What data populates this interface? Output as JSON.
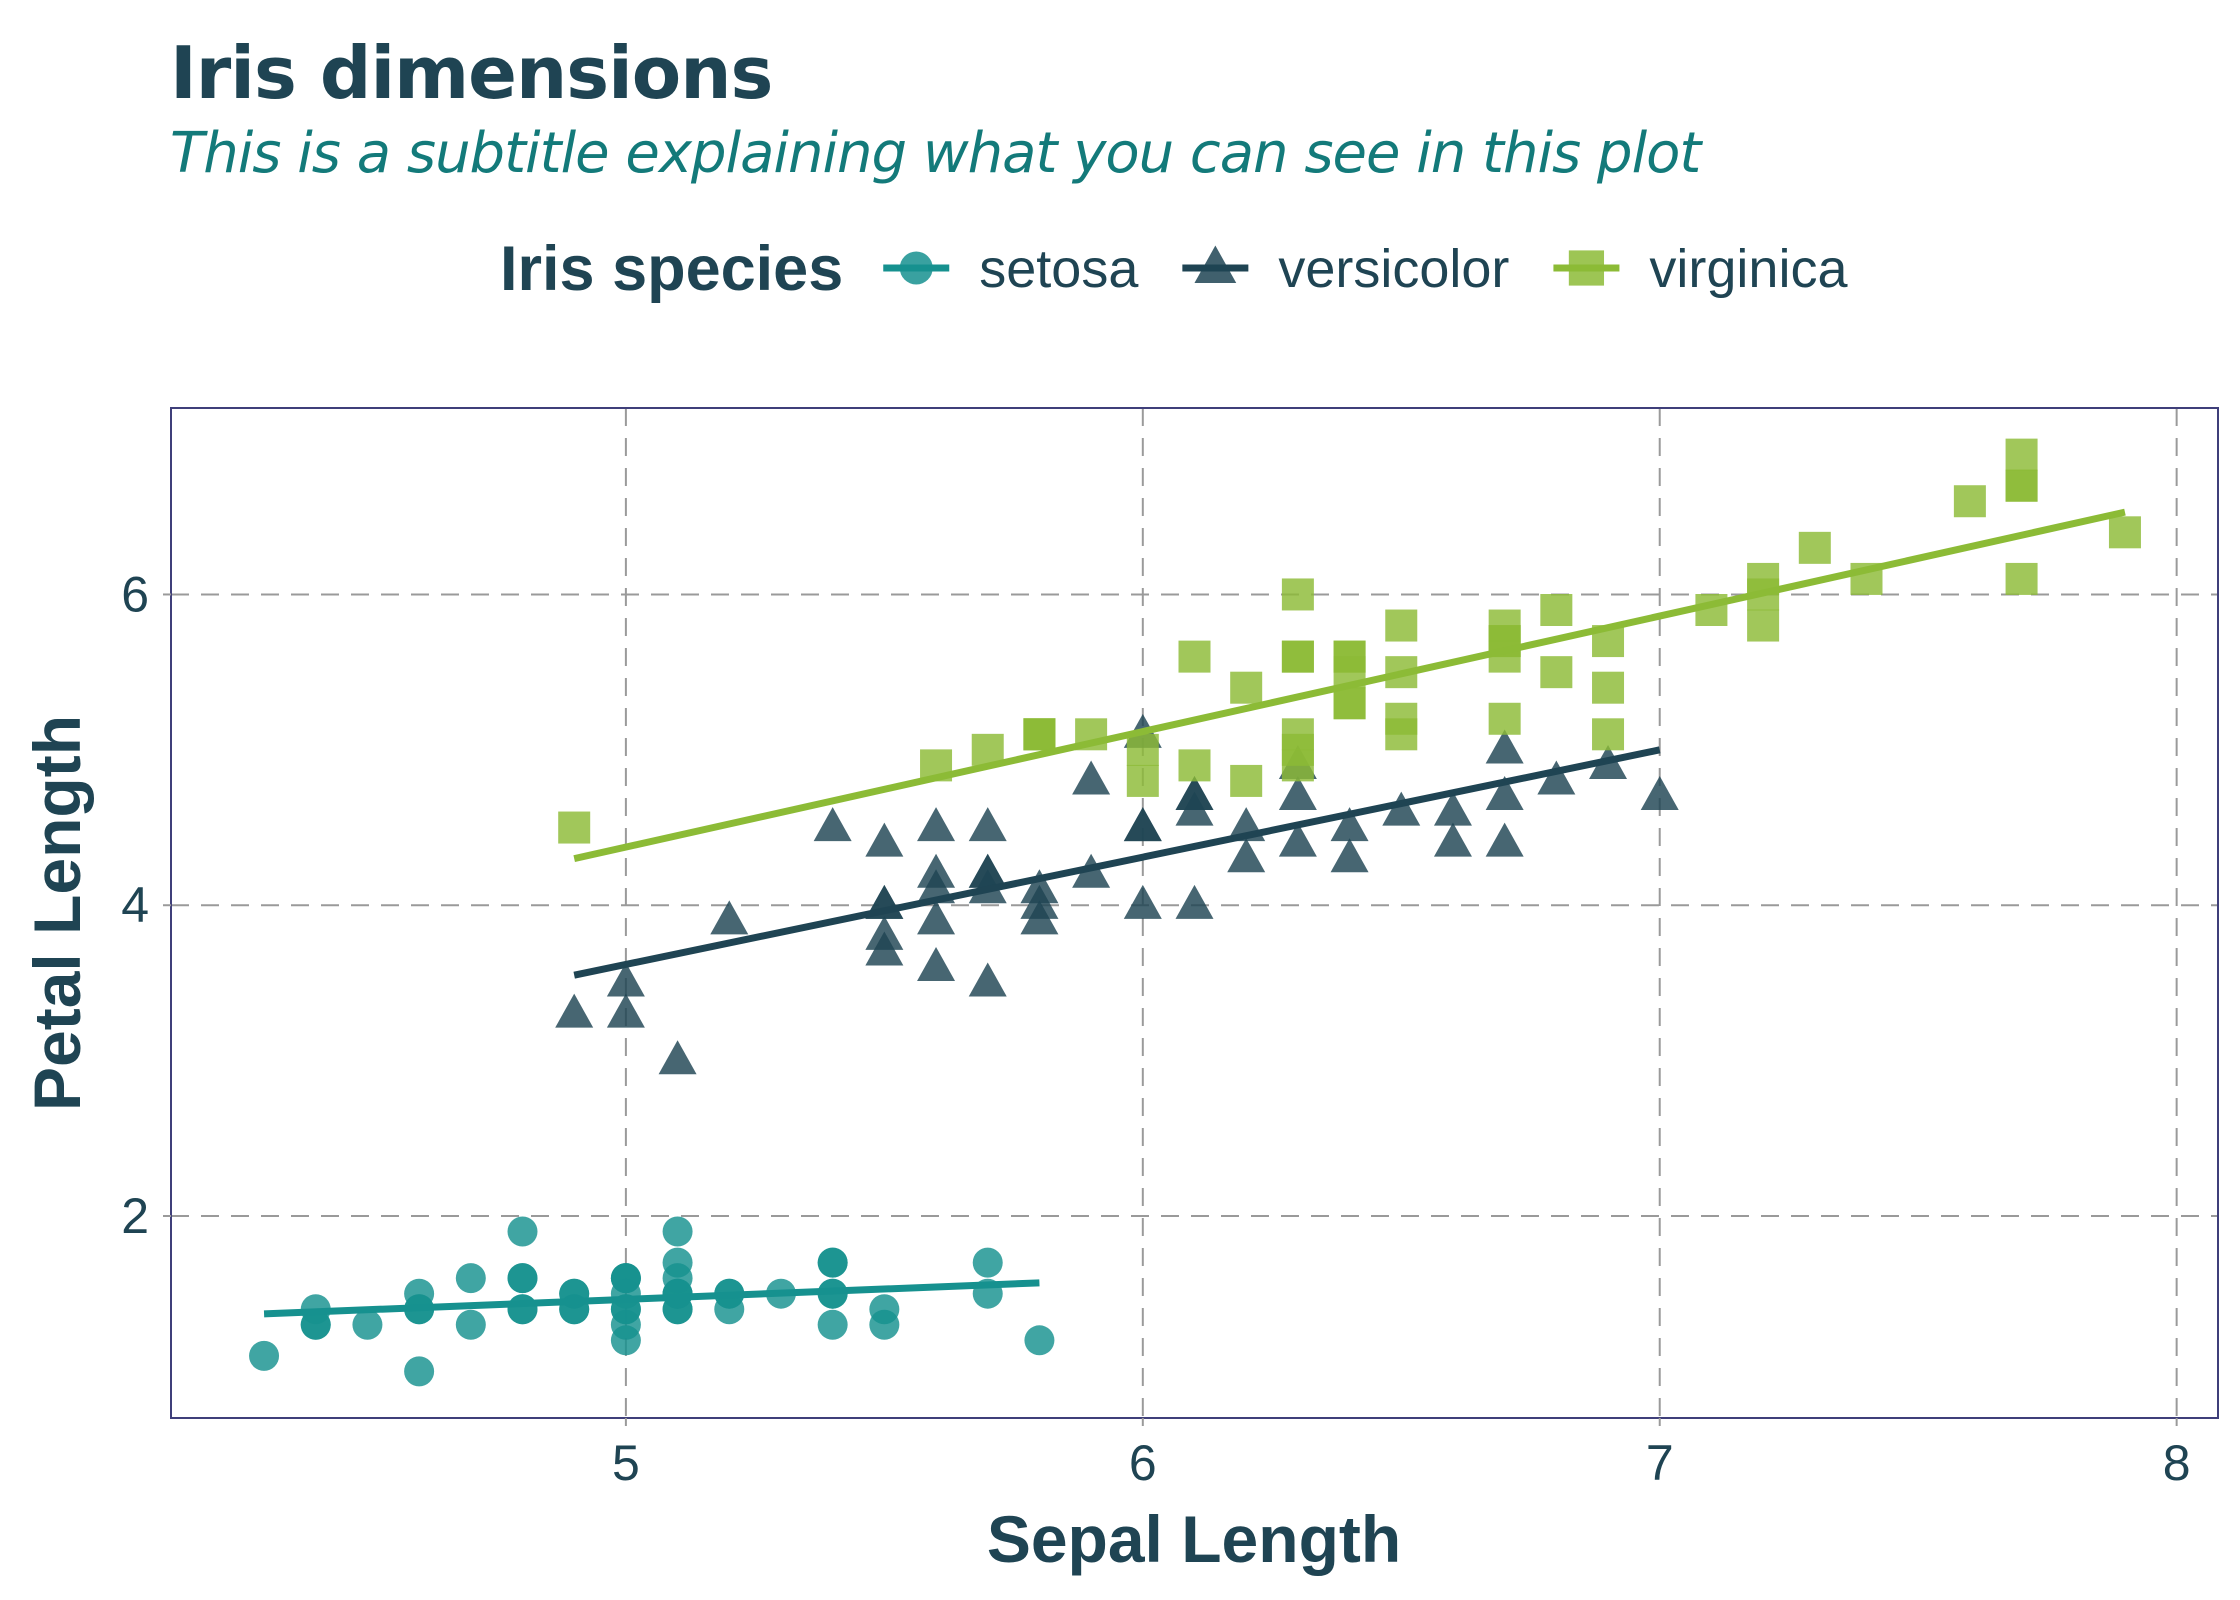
{
  "chart_data": {
    "type": "scatter",
    "title": "Iris dimensions",
    "subtitle": "This is a subtitle explaining what you can see in this plot",
    "xlabel": "Sepal Length",
    "ylabel": "Petal Length",
    "xlim": [
      4.12,
      8.08
    ],
    "ylim": [
      0.7,
      7.2
    ],
    "x_ticks": [
      5,
      6,
      7,
      8
    ],
    "y_ticks": [
      2,
      4,
      6
    ],
    "grid": true,
    "legend": {
      "title": "Iris species",
      "placement": "top"
    },
    "colors": {
      "text": "#1f4453",
      "subtitle": "#137a7a",
      "grid": "#9a9a9a",
      "panel_border": "#3f3f7a"
    },
    "series": [
      {
        "name": "setosa",
        "marker": "circle",
        "color": "#16918f",
        "trend": {
          "x": [
            4.3,
            5.8
          ],
          "y": [
            1.37,
            1.57
          ]
        },
        "points": [
          [
            5.1,
            1.4
          ],
          [
            4.9,
            1.4
          ],
          [
            4.7,
            1.3
          ],
          [
            4.6,
            1.5
          ],
          [
            5.0,
            1.4
          ],
          [
            5.4,
            1.7
          ],
          [
            4.6,
            1.4
          ],
          [
            5.0,
            1.5
          ],
          [
            4.4,
            1.4
          ],
          [
            4.9,
            1.5
          ],
          [
            5.4,
            1.5
          ],
          [
            4.8,
            1.6
          ],
          [
            4.8,
            1.4
          ],
          [
            4.3,
            1.1
          ],
          [
            5.8,
            1.2
          ],
          [
            5.7,
            1.5
          ],
          [
            5.4,
            1.3
          ],
          [
            5.1,
            1.4
          ],
          [
            5.7,
            1.7
          ],
          [
            5.1,
            1.5
          ],
          [
            5.4,
            1.7
          ],
          [
            5.1,
            1.5
          ],
          [
            4.6,
            1.0
          ],
          [
            5.1,
            1.7
          ],
          [
            4.8,
            1.9
          ],
          [
            5.0,
            1.6
          ],
          [
            5.0,
            1.6
          ],
          [
            5.2,
            1.5
          ],
          [
            5.2,
            1.4
          ],
          [
            4.7,
            1.6
          ],
          [
            4.8,
            1.6
          ],
          [
            5.4,
            1.5
          ],
          [
            5.2,
            1.5
          ],
          [
            5.5,
            1.4
          ],
          [
            4.9,
            1.5
          ],
          [
            5.0,
            1.2
          ],
          [
            5.5,
            1.3
          ],
          [
            4.9,
            1.4
          ],
          [
            4.4,
            1.3
          ],
          [
            5.1,
            1.5
          ],
          [
            5.0,
            1.3
          ],
          [
            4.5,
            1.3
          ],
          [
            4.4,
            1.3
          ],
          [
            5.0,
            1.6
          ],
          [
            5.1,
            1.9
          ],
          [
            4.8,
            1.4
          ],
          [
            5.1,
            1.6
          ],
          [
            4.6,
            1.4
          ],
          [
            5.3,
            1.5
          ],
          [
            5.0,
            1.4
          ]
        ]
      },
      {
        "name": "versicolor",
        "marker": "triangle",
        "color": "#1f4453",
        "trend": {
          "x": [
            4.9,
            7.0
          ],
          "y": [
            3.55,
            5.0
          ]
        },
        "points": [
          [
            7.0,
            4.7
          ],
          [
            6.4,
            4.5
          ],
          [
            6.9,
            4.9
          ],
          [
            5.5,
            4.0
          ],
          [
            6.5,
            4.6
          ],
          [
            5.7,
            4.5
          ],
          [
            6.3,
            4.7
          ],
          [
            4.9,
            3.3
          ],
          [
            6.6,
            4.6
          ],
          [
            5.2,
            3.9
          ],
          [
            5.0,
            3.5
          ],
          [
            5.9,
            4.2
          ],
          [
            6.0,
            4.0
          ],
          [
            6.1,
            4.7
          ],
          [
            5.6,
            3.6
          ],
          [
            6.7,
            4.4
          ],
          [
            5.6,
            4.5
          ],
          [
            5.8,
            4.1
          ],
          [
            6.2,
            4.5
          ],
          [
            5.6,
            3.9
          ],
          [
            5.9,
            4.8
          ],
          [
            6.1,
            4.0
          ],
          [
            6.3,
            4.9
          ],
          [
            6.1,
            4.7
          ],
          [
            6.4,
            4.3
          ],
          [
            6.6,
            4.4
          ],
          [
            6.8,
            4.8
          ],
          [
            6.7,
            5.0
          ],
          [
            6.0,
            4.5
          ],
          [
            5.7,
            3.5
          ],
          [
            5.5,
            3.8
          ],
          [
            5.5,
            3.7
          ],
          [
            5.8,
            3.9
          ],
          [
            6.0,
            5.1
          ],
          [
            5.4,
            4.5
          ],
          [
            6.0,
            4.5
          ],
          [
            6.7,
            4.7
          ],
          [
            6.3,
            4.4
          ],
          [
            5.6,
            4.1
          ],
          [
            5.5,
            4.0
          ],
          [
            5.5,
            4.4
          ],
          [
            6.1,
            4.6
          ],
          [
            5.8,
            4.0
          ],
          [
            5.0,
            3.3
          ],
          [
            5.6,
            4.2
          ],
          [
            5.7,
            4.2
          ],
          [
            5.7,
            4.2
          ],
          [
            6.2,
            4.3
          ],
          [
            5.1,
            3.0
          ],
          [
            5.7,
            4.1
          ]
        ]
      },
      {
        "name": "virginica",
        "marker": "square",
        "color": "#8cbb36",
        "trend": {
          "x": [
            4.9,
            7.9
          ],
          "y": [
            4.3,
            6.53
          ]
        },
        "points": [
          [
            6.3,
            6.0
          ],
          [
            5.8,
            5.1
          ],
          [
            7.1,
            5.9
          ],
          [
            6.3,
            5.6
          ],
          [
            6.5,
            5.8
          ],
          [
            7.6,
            6.6
          ],
          [
            4.9,
            4.5
          ],
          [
            7.3,
            6.3
          ],
          [
            6.7,
            5.8
          ],
          [
            7.2,
            6.1
          ],
          [
            6.5,
            5.1
          ],
          [
            6.4,
            5.3
          ],
          [
            6.8,
            5.5
          ],
          [
            5.7,
            5.0
          ],
          [
            5.8,
            5.1
          ],
          [
            6.4,
            5.3
          ],
          [
            6.5,
            5.5
          ],
          [
            7.7,
            6.7
          ],
          [
            7.7,
            6.9
          ],
          [
            6.0,
            5.0
          ],
          [
            6.9,
            5.7
          ],
          [
            5.6,
            4.9
          ],
          [
            7.7,
            6.7
          ],
          [
            6.3,
            4.9
          ],
          [
            6.7,
            5.7
          ],
          [
            7.2,
            6.0
          ],
          [
            6.2,
            4.8
          ],
          [
            6.1,
            4.9
          ],
          [
            6.4,
            5.6
          ],
          [
            7.2,
            5.8
          ],
          [
            7.4,
            6.1
          ],
          [
            7.9,
            6.4
          ],
          [
            6.4,
            5.6
          ],
          [
            6.3,
            5.1
          ],
          [
            6.1,
            5.6
          ],
          [
            7.7,
            6.1
          ],
          [
            6.3,
            5.6
          ],
          [
            6.4,
            5.5
          ],
          [
            6.0,
            4.8
          ],
          [
            6.9,
            5.4
          ],
          [
            6.7,
            5.6
          ],
          [
            6.9,
            5.1
          ],
          [
            5.8,
            5.1
          ],
          [
            6.8,
            5.9
          ],
          [
            6.7,
            5.7
          ],
          [
            6.7,
            5.2
          ],
          [
            6.3,
            5.0
          ],
          [
            6.5,
            5.2
          ],
          [
            6.2,
            5.4
          ],
          [
            5.9,
            5.1
          ]
        ]
      }
    ]
  }
}
